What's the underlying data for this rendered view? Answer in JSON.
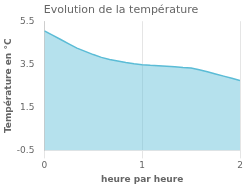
{
  "chart_data": {
    "type": "area",
    "title": "Evolution de la température",
    "x_label": "heure par heure",
    "y_label": "Température en °C",
    "x": [
      0.0,
      0.083,
      0.167,
      0.25,
      0.333,
      0.417,
      0.5,
      0.583,
      0.667,
      0.75,
      0.833,
      0.917,
      1.0,
      1.083,
      1.167,
      1.25,
      1.333,
      1.417,
      1.5,
      1.583,
      1.667,
      1.75,
      1.833,
      1.917,
      2.0
    ],
    "values": [
      5.05,
      4.85,
      4.65,
      4.45,
      4.25,
      4.1,
      3.95,
      3.82,
      3.72,
      3.65,
      3.58,
      3.52,
      3.48,
      3.45,
      3.43,
      3.41,
      3.38,
      3.35,
      3.33,
      3.25,
      3.15,
      3.05,
      2.95,
      2.85,
      2.75
    ],
    "color": "#5bbcd6",
    "xlim": [
      0,
      2
    ],
    "ylim": [
      -0.5,
      5.5
    ],
    "xticks": [
      0,
      1,
      2
    ],
    "yticks": [
      -0.5,
      1.5,
      3.5,
      5.5
    ],
    "grid": "x"
  }
}
